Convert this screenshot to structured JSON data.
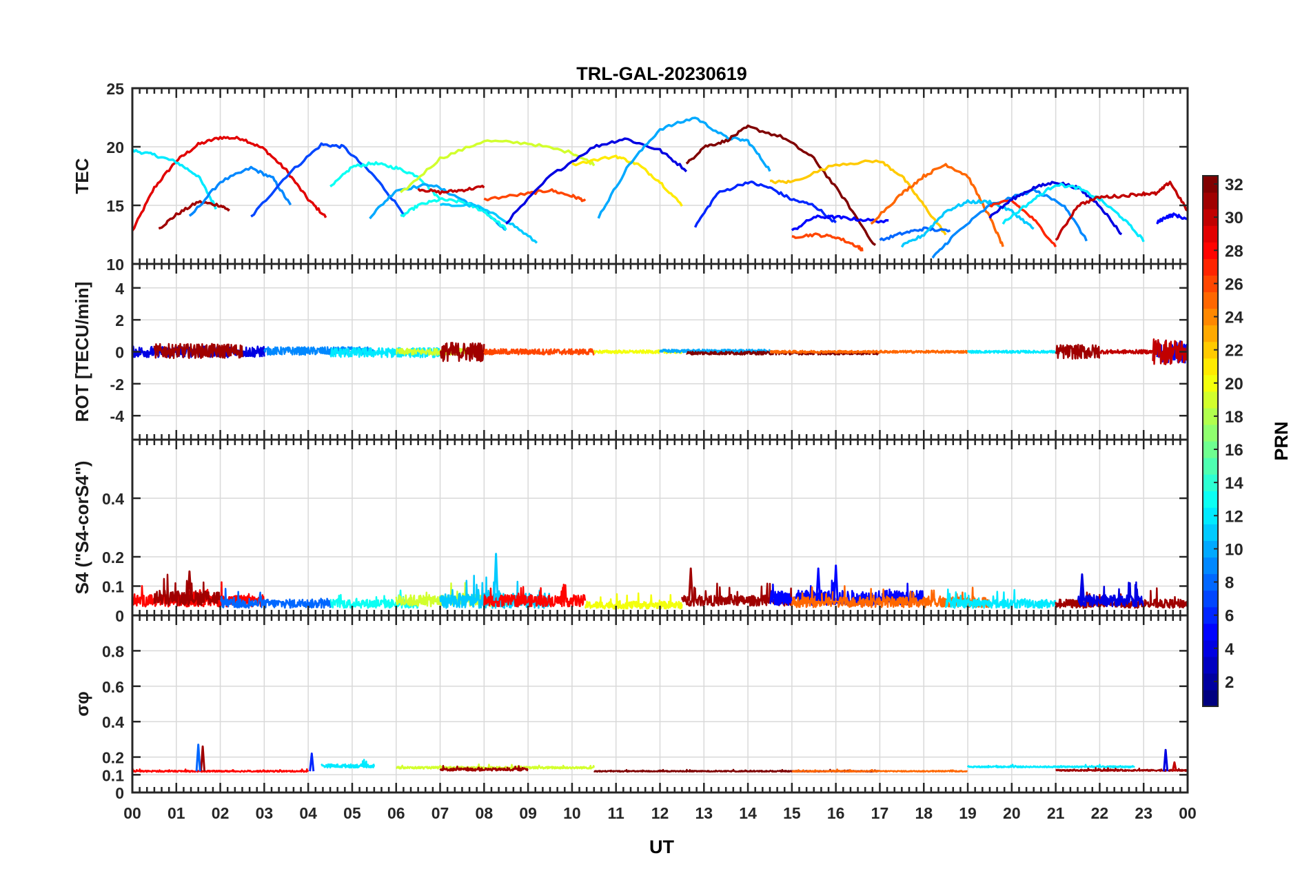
{
  "figure": {
    "title": "TRL-GAL-20230619",
    "xlabel": "UT",
    "colorbar_label": "PRN"
  },
  "chart_data": [
    {
      "type": "line",
      "name": "tec-panel",
      "ylabel": "TEC",
      "xlim": [
        0,
        24
      ],
      "ylim": [
        10,
        25
      ],
      "yticks": [
        10,
        15,
        20,
        25
      ],
      "ytick_labels": [
        "10",
        "15",
        "20",
        "25"
      ],
      "grid": true,
      "series": [
        {
          "prn": 29,
          "x": [
            0.0,
            0.5,
            1.0,
            1.5,
            2.0,
            2.5,
            3.0,
            3.5,
            4.0,
            4.4
          ],
          "y": [
            12.8,
            16.5,
            18.8,
            20.2,
            20.8,
            20.7,
            19.8,
            18.0,
            15.5,
            14.0
          ]
        },
        {
          "prn": 12,
          "x": [
            0.0,
            0.5,
            1.0,
            1.5,
            1.9
          ],
          "y": [
            19.7,
            19.3,
            18.7,
            17.5,
            14.8
          ]
        },
        {
          "prn": 31,
          "x": [
            0.6,
            1.0,
            1.5,
            2.0,
            2.2
          ],
          "y": [
            13.0,
            14.2,
            15.3,
            15.0,
            14.6
          ]
        },
        {
          "prn": 9,
          "x": [
            1.3,
            2.0,
            2.7,
            3.2,
            3.6
          ],
          "y": [
            14.0,
            17.0,
            18.2,
            17.3,
            15.0
          ]
        },
        {
          "prn": 7,
          "x": [
            2.7,
            3.5,
            4.3,
            4.8,
            5.5,
            6.2
          ],
          "y": [
            14.0,
            17.5,
            20.2,
            20.0,
            17.5,
            14.2
          ]
        },
        {
          "prn": 13,
          "x": [
            4.5,
            5.0,
            5.5,
            6.0,
            6.5,
            7.0
          ],
          "y": [
            16.5,
            18.3,
            18.6,
            18.2,
            17.5,
            15.5
          ]
        },
        {
          "prn": 10,
          "x": [
            5.4,
            6.0,
            6.8,
            7.5,
            8.0,
            8.5
          ],
          "y": [
            14.0,
            16.3,
            16.8,
            15.5,
            14.5,
            12.8
          ]
        },
        {
          "prn": 19,
          "x": [
            6.1,
            7.0,
            8.0,
            9.0,
            10.0,
            10.5
          ],
          "y": [
            16.0,
            19.0,
            20.5,
            20.3,
            19.5,
            18.5
          ]
        },
        {
          "prn": 30,
          "x": [
            6.5,
            7.0,
            7.5,
            8.0
          ],
          "y": [
            16.4,
            16.1,
            16.3,
            16.6
          ]
        },
        {
          "prn": 26,
          "x": [
            8.0,
            9.0,
            9.5,
            10.0,
            10.3
          ],
          "y": [
            15.5,
            16.0,
            16.3,
            15.8,
            15.4
          ]
        },
        {
          "prn": 13,
          "x": [
            6.1,
            6.5,
            7.0,
            7.5,
            8.0,
            8.5
          ],
          "y": [
            14.0,
            15.0,
            15.5,
            15.3,
            14.5,
            13.0
          ]
        },
        {
          "prn": 11,
          "x": [
            7.0,
            7.8,
            8.6,
            9.2
          ],
          "y": [
            15.0,
            15.0,
            13.5,
            11.8
          ]
        },
        {
          "prn": 4,
          "x": [
            8.5,
            9.5,
            10.5,
            11.2,
            12.0,
            12.6
          ],
          "y": [
            13.5,
            17.5,
            20.0,
            20.7,
            19.7,
            18.0
          ]
        },
        {
          "prn": 21,
          "x": [
            10.0,
            11.0,
            11.5,
            12.0,
            12.5
          ],
          "y": [
            18.5,
            19.2,
            18.5,
            17.0,
            15.0
          ]
        },
        {
          "prn": 10,
          "x": [
            10.6,
            11.3,
            12.0,
            12.8,
            13.5,
            14.0,
            14.5
          ],
          "y": [
            14.0,
            18.5,
            21.5,
            22.5,
            20.8,
            20.5,
            18.0
          ]
        },
        {
          "prn": 32,
          "x": [
            12.6,
            13.0,
            13.5,
            14.0,
            14.8,
            15.5,
            16.2,
            16.9
          ],
          "y": [
            18.5,
            20.0,
            20.5,
            21.7,
            20.8,
            19.0,
            15.5,
            11.5
          ]
        },
        {
          "prn": 6,
          "x": [
            12.8,
            13.3,
            14.0,
            14.5,
            15.0,
            15.5,
            16.0
          ],
          "y": [
            13.2,
            16.0,
            17.0,
            16.5,
            15.5,
            15.0,
            13.5
          ]
        },
        {
          "prn": 22,
          "x": [
            14.5,
            15.0,
            16.0,
            17.0,
            17.5,
            18.0,
            18.5
          ],
          "y": [
            17.0,
            17.0,
            18.5,
            18.8,
            17.5,
            15.0,
            12.5
          ]
        },
        {
          "prn": 5,
          "x": [
            15.0,
            15.5,
            16.0,
            16.5,
            17.2
          ],
          "y": [
            12.8,
            14.0,
            14.0,
            13.8,
            13.6
          ]
        },
        {
          "prn": 26,
          "x": [
            15.0,
            15.5,
            16.0,
            16.5,
            16.6
          ],
          "y": [
            12.3,
            12.5,
            12.3,
            11.5,
            11.2
          ]
        },
        {
          "prn": 8,
          "x": [
            17.0,
            17.5,
            18.0,
            18.6
          ],
          "y": [
            12.0,
            12.6,
            13.0,
            12.8
          ]
        },
        {
          "prn": 25,
          "x": [
            16.8,
            17.5,
            18.0,
            18.5,
            19.0,
            19.5,
            19.8
          ],
          "y": [
            13.5,
            16.0,
            17.5,
            18.5,
            17.5,
            14.0,
            11.5
          ]
        },
        {
          "prn": 11,
          "x": [
            17.5,
            18.0,
            18.5,
            19.0,
            19.5,
            20.0,
            20.5
          ],
          "y": [
            11.5,
            12.5,
            14.5,
            15.3,
            15.3,
            14.5,
            13.0
          ]
        },
        {
          "prn": 9,
          "x": [
            18.2,
            18.7,
            19.5,
            20.5,
            21.2,
            21.7
          ],
          "y": [
            10.5,
            12.5,
            15.0,
            16.3,
            15.0,
            12.0
          ]
        },
        {
          "prn": 27,
          "x": [
            19.5,
            20.0,
            20.5,
            21.0
          ],
          "y": [
            15.0,
            15.4,
            13.8,
            11.5
          ]
        },
        {
          "prn": 4,
          "x": [
            19.5,
            20.0,
            20.5,
            21.0,
            21.5,
            22.0,
            22.5
          ],
          "y": [
            14.0,
            15.5,
            16.5,
            17.0,
            16.5,
            15.0,
            12.5
          ]
        },
        {
          "prn": 12,
          "x": [
            19.8,
            20.5,
            21.0,
            21.5,
            22.0,
            22.5,
            23.0
          ],
          "y": [
            13.5,
            15.5,
            16.8,
            16.5,
            15.5,
            14.0,
            12.0
          ]
        },
        {
          "prn": 30,
          "x": [
            21.0,
            21.5,
            22.0,
            22.5,
            23.0,
            23.3,
            23.6,
            24.0
          ],
          "y": [
            12.0,
            15.0,
            15.7,
            15.8,
            16.0,
            16.0,
            17.0,
            14.5
          ]
        },
        {
          "prn": 5,
          "x": [
            23.3,
            23.5,
            23.7,
            24.0
          ],
          "y": [
            13.5,
            14.0,
            14.2,
            13.8
          ]
        }
      ]
    },
    {
      "type": "line",
      "name": "rot-panel",
      "ylabel": "ROT [TECU/min]",
      "xlim": [
        0,
        24
      ],
      "ylim": [
        -5.5,
        5.5
      ],
      "yticks": [
        -4,
        -2,
        0,
        2,
        4
      ],
      "ytick_labels": [
        "-4",
        "-2",
        "0",
        "2",
        "4"
      ],
      "grid": true,
      "segments": [
        {
          "prn": 4,
          "x0": 0.0,
          "x1": 3.0,
          "base": 0.0,
          "amp": 0.35
        },
        {
          "prn": 31,
          "x0": 0.5,
          "x1": 2.5,
          "base": 0.05,
          "amp": 0.45
        },
        {
          "prn": 9,
          "x0": 3.0,
          "x1": 5.5,
          "base": 0.05,
          "amp": 0.25
        },
        {
          "prn": 12,
          "x0": 4.5,
          "x1": 7.0,
          "base": -0.05,
          "amp": 0.3
        },
        {
          "prn": 19,
          "x0": 6.0,
          "x1": 8.0,
          "base": 0.0,
          "amp": 0.2
        },
        {
          "prn": 31,
          "x0": 7.0,
          "x1": 8.0,
          "base": 0.0,
          "amp": 0.6
        },
        {
          "prn": 26,
          "x0": 8.0,
          "x1": 10.5,
          "base": 0.0,
          "amp": 0.18
        },
        {
          "prn": 20,
          "x0": 10.5,
          "x1": 12.5,
          "base": 0.0,
          "amp": 0.1
        },
        {
          "prn": 10,
          "x0": 12.0,
          "x1": 14.5,
          "base": 0.05,
          "amp": 0.1
        },
        {
          "prn": 32,
          "x0": 12.6,
          "x1": 17.0,
          "base": -0.08,
          "amp": 0.1
        },
        {
          "prn": 25,
          "x0": 14.5,
          "x1": 19.0,
          "base": 0.0,
          "amp": 0.08
        },
        {
          "prn": 12,
          "x0": 19.0,
          "x1": 21.0,
          "base": 0.0,
          "amp": 0.08
        },
        {
          "prn": 31,
          "x0": 21.0,
          "x1": 22.0,
          "base": 0.0,
          "amp": 0.45
        },
        {
          "prn": 30,
          "x0": 22.0,
          "x1": 23.3,
          "base": 0.0,
          "amp": 0.12
        },
        {
          "prn": 5,
          "x0": 23.3,
          "x1": 24.0,
          "base": 0.0,
          "amp": 0.7
        },
        {
          "prn": 30,
          "x0": 23.2,
          "x1": 24.0,
          "base": 0.0,
          "amp": 0.8
        }
      ]
    },
    {
      "type": "line",
      "name": "s4-panel",
      "ylabel": "S4 (\"S4-corS4\")",
      "xlim": [
        0,
        24
      ],
      "ylim": [
        0,
        0.6
      ],
      "yticks": [
        0,
        0.1,
        0.2,
        0.4
      ],
      "ytick_labels": [
        "0",
        "0.1",
        "0.2",
        "0.4"
      ],
      "grid": true,
      "segments": [
        {
          "prn": 28,
          "x0": 0.0,
          "x1": 3.0,
          "base": 0.05,
          "amp": 0.04
        },
        {
          "prn": 31,
          "x0": 0.5,
          "x1": 2.0,
          "base": 0.06,
          "amp": 0.05
        },
        {
          "prn": 8,
          "x0": 2.0,
          "x1": 4.5,
          "base": 0.04,
          "amp": 0.03
        },
        {
          "prn": 13,
          "x0": 4.5,
          "x1": 6.5,
          "base": 0.04,
          "amp": 0.03
        },
        {
          "prn": 19,
          "x0": 6.0,
          "x1": 8.5,
          "base": 0.05,
          "amp": 0.04
        },
        {
          "prn": 11,
          "x0": 7.0,
          "x1": 9.5,
          "base": 0.05,
          "amp": 0.05
        },
        {
          "prn": 28,
          "x0": 8.0,
          "x1": 10.3,
          "base": 0.05,
          "amp": 0.04
        },
        {
          "prn": 20,
          "x0": 10.3,
          "x1": 12.5,
          "base": 0.035,
          "amp": 0.025
        },
        {
          "prn": 31,
          "x0": 12.5,
          "x1": 15.0,
          "base": 0.05,
          "amp": 0.035
        },
        {
          "prn": 5,
          "x0": 14.5,
          "x1": 18.0,
          "base": 0.06,
          "amp": 0.05
        },
        {
          "prn": 25,
          "x0": 15.0,
          "x1": 19.5,
          "base": 0.045,
          "amp": 0.035
        },
        {
          "prn": 12,
          "x0": 18.5,
          "x1": 21.0,
          "base": 0.04,
          "amp": 0.03
        },
        {
          "prn": 31,
          "x0": 21.0,
          "x1": 24.0,
          "base": 0.04,
          "amp": 0.03
        },
        {
          "prn": 4,
          "x0": 21.5,
          "x1": 23.0,
          "base": 0.05,
          "amp": 0.04
        }
      ],
      "peaks": [
        {
          "prn": 11,
          "x": 8.27,
          "y": 0.21
        },
        {
          "prn": 31,
          "x": 1.3,
          "y": 0.15
        },
        {
          "prn": 31,
          "x": 12.7,
          "y": 0.16
        },
        {
          "prn": 5,
          "x": 16.0,
          "y": 0.17
        },
        {
          "prn": 5,
          "x": 15.6,
          "y": 0.16
        },
        {
          "prn": 4,
          "x": 21.6,
          "y": 0.14
        }
      ]
    },
    {
      "type": "line",
      "name": "sigma-phi-panel",
      "ylabel": "σφ",
      "xlim": [
        0,
        24
      ],
      "ylim": [
        0,
        1
      ],
      "yticks": [
        0,
        0.1,
        0.2,
        0.4,
        0.6,
        0.8
      ],
      "ytick_labels": [
        "0",
        "0.1",
        "0.2",
        "0.4",
        "0.6",
        "0.8"
      ],
      "xticks": [
        0,
        1,
        2,
        3,
        4,
        5,
        6,
        7,
        8,
        9,
        10,
        11,
        12,
        13,
        14,
        15,
        16,
        17,
        18,
        19,
        20,
        21,
        22,
        23,
        24
      ],
      "xtick_labels": [
        "00",
        "01",
        "02",
        "03",
        "04",
        "05",
        "06",
        "07",
        "08",
        "09",
        "10",
        "11",
        "12",
        "13",
        "14",
        "15",
        "16",
        "17",
        "18",
        "19",
        "20",
        "21",
        "22",
        "23",
        "00"
      ],
      "grid": true,
      "segments": [
        {
          "prn": 28,
          "x0": 0.0,
          "x1": 4.0,
          "base": 0.12,
          "amp": 0.008
        },
        {
          "prn": 12,
          "x0": 4.3,
          "x1": 5.5,
          "base": 0.15,
          "amp": 0.02
        },
        {
          "prn": 19,
          "x0": 6.0,
          "x1": 10.5,
          "base": 0.14,
          "amp": 0.012
        },
        {
          "prn": 31,
          "x0": 7.0,
          "x1": 9.0,
          "base": 0.13,
          "amp": 0.015
        },
        {
          "prn": 32,
          "x0": 10.5,
          "x1": 17.0,
          "base": 0.12,
          "amp": 0.006
        },
        {
          "prn": 25,
          "x0": 15.0,
          "x1": 19.0,
          "base": 0.12,
          "amp": 0.006
        },
        {
          "prn": 12,
          "x0": 19.0,
          "x1": 22.8,
          "base": 0.145,
          "amp": 0.008
        },
        {
          "prn": 31,
          "x0": 21.0,
          "x1": 24.0,
          "base": 0.125,
          "amp": 0.008
        }
      ],
      "peaks": [
        {
          "prn": 31,
          "x": 1.6,
          "y": 0.26
        },
        {
          "prn": 8,
          "x": 1.5,
          "y": 0.27
        },
        {
          "prn": 6,
          "x": 4.08,
          "y": 0.22
        },
        {
          "prn": 4,
          "x": 23.5,
          "y": 0.24
        },
        {
          "prn": 30,
          "x": 23.7,
          "y": 0.17
        }
      ]
    }
  ],
  "colorbar": {
    "min": 1,
    "max": 32,
    "ticks": [
      2,
      4,
      6,
      8,
      10,
      12,
      14,
      16,
      18,
      20,
      22,
      24,
      26,
      28,
      30,
      32
    ],
    "tick_labels": [
      "2",
      "4",
      "6",
      "8",
      "10",
      "12",
      "14",
      "16",
      "18",
      "20",
      "22",
      "24",
      "26",
      "28",
      "30",
      "32"
    ]
  }
}
